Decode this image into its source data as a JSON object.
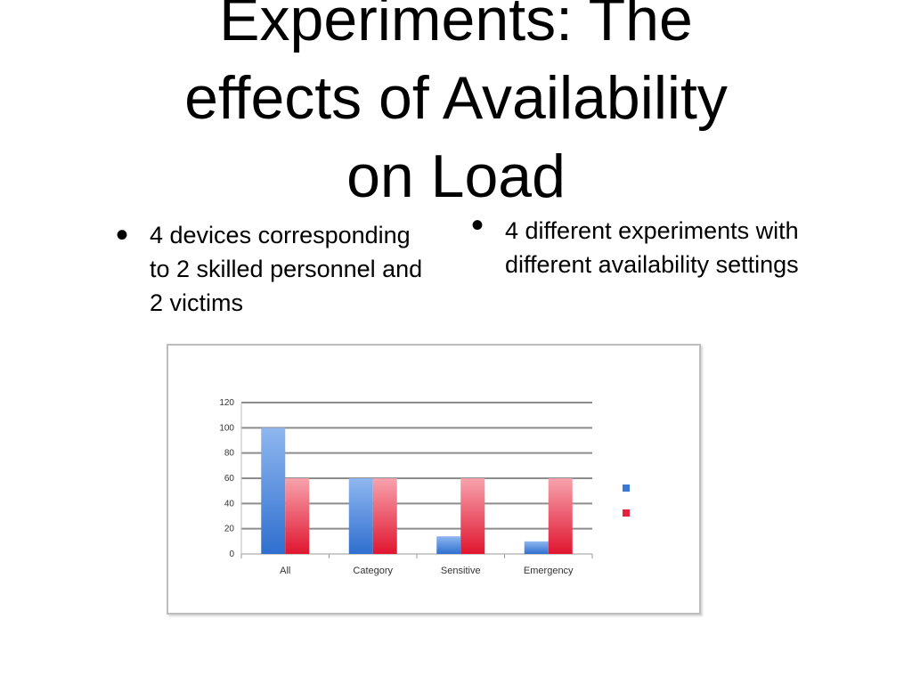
{
  "slide": {
    "title_lines": [
      "Experiments: The",
      "effects of Availability",
      "on Load"
    ],
    "bullets": [
      {
        "text": "4 devices corresponding to 2 skilled personnel and 2 victims"
      },
      {
        "text": "4 different experiments with different availability settings"
      }
    ],
    "bullet_glyph": "•"
  },
  "chart_data": {
    "type": "bar",
    "title": "",
    "xlabel": "",
    "ylabel": "",
    "categories": [
      "All",
      "Category",
      "Sensitive",
      "Emergency"
    ],
    "series": [
      {
        "name": "",
        "values": [
          100,
          60,
          14,
          10
        ],
        "color": "#3a78d4"
      },
      {
        "name": "",
        "values": [
          60,
          60,
          60,
          60
        ],
        "color": "#e8223a"
      }
    ],
    "ylim": [
      0,
      120
    ],
    "yticks": [
      0,
      20,
      40,
      60,
      80,
      100,
      120
    ],
    "grid": true,
    "legend_position": "right"
  }
}
